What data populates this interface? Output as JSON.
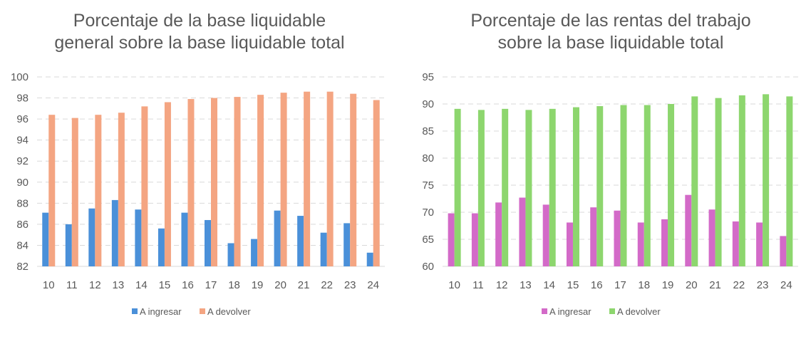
{
  "chart_data": [
    {
      "type": "bar",
      "title": [
        "Porcentaje de la base liquidable",
        "general sobre la base liquidable total"
      ],
      "categories": [
        "10",
        "11",
        "12",
        "13",
        "14",
        "15",
        "16",
        "17",
        "18",
        "19",
        "20",
        "21",
        "22",
        "23",
        "24"
      ],
      "ylim": [
        82,
        100
      ],
      "yticks": [
        82,
        84,
        86,
        88,
        90,
        92,
        94,
        96,
        98,
        100
      ],
      "grid": true,
      "legend_position": "bottom",
      "series": [
        {
          "name": "A ingresar",
          "color": "#4a90d9",
          "values": [
            87.1,
            86.0,
            87.5,
            88.3,
            87.4,
            85.6,
            87.1,
            86.4,
            84.2,
            84.6,
            87.3,
            86.8,
            85.2,
            86.1,
            83.3
          ]
        },
        {
          "name": "A devolver",
          "color": "#f4a582",
          "values": [
            96.4,
            96.1,
            96.4,
            96.6,
            97.2,
            97.6,
            97.9,
            98.0,
            98.1,
            98.3,
            98.5,
            98.6,
            98.6,
            98.4,
            97.8
          ]
        }
      ]
    },
    {
      "type": "bar",
      "title": [
        "Porcentaje de las rentas del trabajo",
        "sobre la base liquidable total"
      ],
      "categories": [
        "10",
        "11",
        "12",
        "13",
        "14",
        "15",
        "16",
        "17",
        "18",
        "19",
        "20",
        "21",
        "22",
        "23",
        "24"
      ],
      "ylim": [
        60,
        95
      ],
      "yticks": [
        60,
        65,
        70,
        75,
        80,
        85,
        90,
        95
      ],
      "grid": true,
      "legend_position": "bottom",
      "series": [
        {
          "name": "A ingresar",
          "color": "#d36ac8",
          "values": [
            69.8,
            69.8,
            71.8,
            72.7,
            71.4,
            68.1,
            70.9,
            70.3,
            68.1,
            68.7,
            73.2,
            70.5,
            68.3,
            68.1,
            65.6
          ]
        },
        {
          "name": "A devolver",
          "color": "#8dd66e",
          "values": [
            89.1,
            88.9,
            89.1,
            88.9,
            89.1,
            89.4,
            89.6,
            89.8,
            89.8,
            90.0,
            91.4,
            91.1,
            91.6,
            91.8,
            91.4
          ]
        }
      ]
    }
  ]
}
